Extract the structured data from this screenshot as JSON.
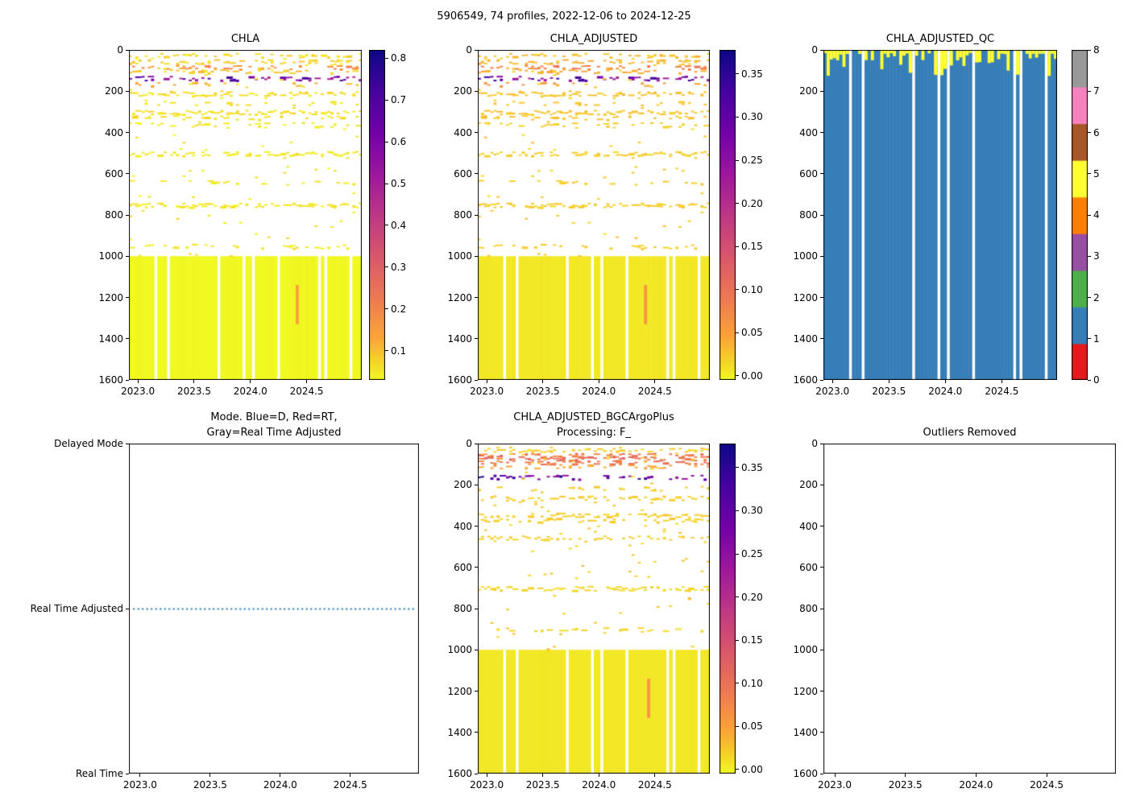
{
  "figure": {
    "title": "5906549, 74 profiles, 2022-12-06 to 2024-12-25"
  },
  "chart_data": [
    {
      "id": "chla",
      "type": "heatmap",
      "title": "CHLA",
      "x": {
        "lim": [
          2022.92,
          2024.99
        ],
        "ticks": [
          "2023.0",
          "2023.5",
          "2024.0",
          "2024.5"
        ]
      },
      "y": {
        "lim": [
          1600,
          0
        ],
        "ticks": [
          "0",
          "200",
          "400",
          "600",
          "800",
          "1000",
          "1200",
          "1400",
          "1600"
        ]
      },
      "n_profiles": 74,
      "missing_profile_indices": [
        8,
        12,
        28,
        36,
        39,
        47,
        60,
        62,
        70
      ],
      "colorbar": {
        "colormap": "plasma_r",
        "vmin": 0.03,
        "vmax": 0.82,
        "ticks": [
          "0.1",
          "0.2",
          "0.3",
          "0.4",
          "0.5",
          "0.6",
          "0.7",
          "0.8"
        ],
        "stops": [
          "#f0f921",
          "#fca636",
          "#ed7953",
          "#d8576b",
          "#bd3786",
          "#9c179e",
          "#7201a8",
          "#46039f",
          "#0d0887"
        ]
      },
      "deep_block": {
        "depth_range": [
          1000,
          1600
        ],
        "value": 0.03
      },
      "bands": [
        {
          "depth": 25,
          "value": 0.07,
          "density": 0.4
        },
        {
          "depth": 55,
          "value": 0.08,
          "density": 0.55
        },
        {
          "depth": 80,
          "value": 0.17,
          "density": 0.6
        },
        {
          "depth": 100,
          "value": 0.09,
          "density": 0.45
        },
        {
          "depth": 135,
          "value": 0.58,
          "density": 0.65
        },
        {
          "depth": 165,
          "value": 0.12,
          "density": 0.3
        },
        {
          "depth": 210,
          "value": 0.06,
          "density": 0.8
        },
        {
          "depth": 255,
          "value": 0.06,
          "density": 0.3
        },
        {
          "depth": 300,
          "value": 0.06,
          "density": 0.85
        },
        {
          "depth": 325,
          "value": 0.06,
          "density": 0.45
        },
        {
          "depth": 360,
          "value": 0.05,
          "density": 0.4
        },
        {
          "depth": 500,
          "value": 0.05,
          "density": 0.85
        },
        {
          "depth": 640,
          "value": 0.05,
          "density": 0.25
        },
        {
          "depth": 750,
          "value": 0.05,
          "density": 0.9
        },
        {
          "depth": 950,
          "value": 0.05,
          "density": 0.3
        }
      ],
      "scatter": {
        "density": 3,
        "depth_range": [
          15,
          1000
        ],
        "value": 0.05
      },
      "anomaly": {
        "profile_frac": 0.72,
        "depth_range": [
          1140,
          1330
        ],
        "value": 0.14
      },
      "seed": 42
    },
    {
      "id": "chla_adjusted",
      "type": "heatmap",
      "title": "CHLA_ADJUSTED",
      "x": {
        "lim": [
          2022.92,
          2024.99
        ],
        "ticks": [
          "2023.0",
          "2023.5",
          "2024.0",
          "2024.5"
        ]
      },
      "y": {
        "lim": [
          1600,
          0
        ],
        "ticks": [
          "0",
          "200",
          "400",
          "600",
          "800",
          "1000",
          "1200",
          "1400",
          "1600"
        ]
      },
      "n_profiles": 74,
      "missing_profile_indices": [
        8,
        12,
        28,
        36,
        39,
        47,
        60,
        62,
        70
      ],
      "colorbar": {
        "colormap": "plasma_r",
        "vmin": -0.005,
        "vmax": 0.378,
        "ticks": [
          "0.00",
          "0.05",
          "0.10",
          "0.15",
          "0.20",
          "0.25",
          "0.30",
          "0.35"
        ],
        "stops": [
          "#f0f921",
          "#fca636",
          "#ed7953",
          "#d8576b",
          "#bd3786",
          "#9c179e",
          "#7201a8",
          "#46039f",
          "#0d0887"
        ]
      },
      "deep_block": {
        "depth_range": [
          1000,
          1600
        ],
        "value": 0.005
      },
      "bands": [
        {
          "depth": 25,
          "value": 0.03,
          "density": 0.4
        },
        {
          "depth": 55,
          "value": 0.035,
          "density": 0.55
        },
        {
          "depth": 80,
          "value": 0.08,
          "density": 0.6
        },
        {
          "depth": 100,
          "value": 0.04,
          "density": 0.45
        },
        {
          "depth": 135,
          "value": 0.27,
          "density": 0.65
        },
        {
          "depth": 165,
          "value": 0.055,
          "density": 0.3
        },
        {
          "depth": 210,
          "value": 0.025,
          "density": 0.8
        },
        {
          "depth": 255,
          "value": 0.025,
          "density": 0.3
        },
        {
          "depth": 300,
          "value": 0.025,
          "density": 0.85
        },
        {
          "depth": 325,
          "value": 0.025,
          "density": 0.45
        },
        {
          "depth": 360,
          "value": 0.02,
          "density": 0.4
        },
        {
          "depth": 500,
          "value": 0.02,
          "density": 0.85
        },
        {
          "depth": 640,
          "value": 0.02,
          "density": 0.25
        },
        {
          "depth": 750,
          "value": 0.02,
          "density": 0.9
        },
        {
          "depth": 950,
          "value": 0.02,
          "density": 0.3
        }
      ],
      "scatter": {
        "density": 3,
        "depth_range": [
          15,
          1000
        ],
        "value": 0.02
      },
      "anomaly": {
        "profile_frac": 0.72,
        "depth_range": [
          1140,
          1330
        ],
        "value": 0.06
      },
      "seed": 42
    },
    {
      "id": "chla_adjusted_qc",
      "type": "heatmap",
      "title": "CHLA_ADJUSTED_QC",
      "x": {
        "lim": [
          2022.92,
          2024.99
        ],
        "ticks": [
          "2023.0",
          "2023.5",
          "2024.0",
          "2024.5"
        ]
      },
      "y": {
        "lim": [
          1600,
          0
        ],
        "ticks": [
          "0",
          "200",
          "400",
          "600",
          "800",
          "1000",
          "1200",
          "1400",
          "1600"
        ]
      },
      "n_profiles": 74,
      "missing_profile_indices": [
        8,
        12,
        28,
        36,
        39,
        47,
        60,
        62,
        70
      ],
      "fill_value": 1,
      "cap_value": 5,
      "cap_depth_range": [
        15,
        130
      ],
      "cap_probability": 0.85,
      "colorbar": {
        "type": "discrete",
        "ticks": [
          "0",
          "1",
          "2",
          "3",
          "4",
          "5",
          "6",
          "7",
          "8"
        ],
        "colors": [
          "#e41a1c",
          "#377eb8",
          "#4daf4a",
          "#984ea3",
          "#ff7f00",
          "#ffff33",
          "#a65628",
          "#f781bf",
          "#999999"
        ]
      },
      "seed": 7
    },
    {
      "id": "mode",
      "type": "line",
      "title": "Mode. Blue=D, Red=RT,",
      "subtitle": "Gray=Real Time Adjusted",
      "x": {
        "lim": [
          2022.92,
          2024.99
        ],
        "ticks": [
          "2023.0",
          "2023.5",
          "2024.0",
          "2024.5"
        ]
      },
      "y": {
        "categories": [
          "Delayed Mode",
          "Real Time Adjusted",
          "Real Time"
        ]
      },
      "series": [
        {
          "name": "mode",
          "value": "Real Time Adjusted",
          "x_range": [
            2022.95,
            2024.97
          ],
          "style": "dotted",
          "color": "#1f77b4"
        }
      ]
    },
    {
      "id": "chla_adjusted_bgc",
      "type": "heatmap",
      "title": "CHLA_ADJUSTED_BGCArgoPlus",
      "subtitle": "Processing: F_",
      "x": {
        "lim": [
          2022.92,
          2024.99
        ],
        "ticks": [
          "2023.0",
          "2023.5",
          "2024.0",
          "2024.5"
        ]
      },
      "y": {
        "lim": [
          1600,
          0
        ],
        "ticks": [
          "0",
          "200",
          "400",
          "600",
          "800",
          "1000",
          "1200",
          "1400",
          "1600"
        ]
      },
      "n_profiles": 74,
      "missing_profile_indices": [
        8,
        12,
        28,
        36,
        39,
        47,
        60,
        62,
        70
      ],
      "colorbar": {
        "colormap": "plasma_r",
        "vmin": -0.005,
        "vmax": 0.378,
        "ticks": [
          "0.00",
          "0.05",
          "0.10",
          "0.15",
          "0.20",
          "0.25",
          "0.30",
          "0.35"
        ],
        "stops": [
          "#f0f921",
          "#fca636",
          "#ed7953",
          "#d8576b",
          "#bd3786",
          "#9c179e",
          "#7201a8",
          "#46039f",
          "#0d0887"
        ]
      },
      "deep_block": {
        "depth_range": [
          1000,
          1600
        ],
        "value": 0.005
      },
      "bands": [
        {
          "depth": 30,
          "value": 0.02,
          "density": 0.45
        },
        {
          "depth": 55,
          "value": 0.09,
          "density": 0.75
        },
        {
          "depth": 70,
          "value": 0.1,
          "density": 0.8
        },
        {
          "depth": 88,
          "value": 0.09,
          "density": 0.7
        },
        {
          "depth": 108,
          "value": 0.05,
          "density": 0.5
        },
        {
          "depth": 160,
          "value": 0.3,
          "density": 0.55
        },
        {
          "depth": 215,
          "value": 0.02,
          "density": 0.4
        },
        {
          "depth": 262,
          "value": 0.02,
          "density": 0.7
        },
        {
          "depth": 345,
          "value": 0.02,
          "density": 0.8
        },
        {
          "depth": 368,
          "value": 0.02,
          "density": 0.5
        },
        {
          "depth": 455,
          "value": 0.02,
          "density": 0.7
        },
        {
          "depth": 700,
          "value": 0.015,
          "density": 0.85
        },
        {
          "depth": 900,
          "value": 0.015,
          "density": 0.35
        }
      ],
      "scatter": {
        "density": 3,
        "depth_range": [
          15,
          1000
        ],
        "value": 0.02
      },
      "anomaly": {
        "profile_frac": 0.73,
        "depth_range": [
          1140,
          1330
        ],
        "value": 0.06
      },
      "seed": 99
    },
    {
      "id": "outliers_removed",
      "type": "empty",
      "title": "Outliers Removed",
      "x": {
        "lim": [
          2022.92,
          2024.99
        ],
        "ticks": [
          "2023.0",
          "2023.5",
          "2024.0",
          "2024.5"
        ]
      },
      "y": {
        "lim": [
          1600,
          0
        ],
        "ticks": [
          "0",
          "200",
          "400",
          "600",
          "800",
          "1000",
          "1200",
          "1400",
          "1600"
        ]
      }
    }
  ]
}
